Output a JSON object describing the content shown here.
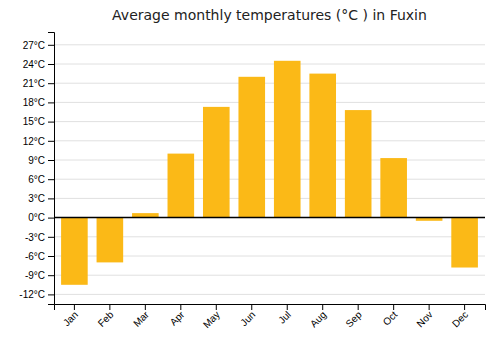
{
  "chart_data": {
    "type": "bar",
    "title": "Average monthly temperatures (°C ) in Fuxin",
    "categories": [
      "Jan",
      "Feb",
      "Mar",
      "Apr",
      "May",
      "Jun",
      "Jul",
      "Aug",
      "Sep",
      "Oct",
      "Nov",
      "Dec"
    ],
    "values": [
      -10.5,
      -7.0,
      0.7,
      10.0,
      17.3,
      22.0,
      24.5,
      22.5,
      16.8,
      9.3,
      -0.5,
      -7.8
    ],
    "color": "#FBB917",
    "ylim": [
      -13.5,
      29
    ],
    "yticks": [
      {
        "value": -12,
        "label": "-12°C"
      },
      {
        "value": -9,
        "label": "-9°C"
      },
      {
        "value": -6,
        "label": "-6°C"
      },
      {
        "value": -3,
        "label": "-3°C"
      },
      {
        "value": 0,
        "label": "0°C"
      },
      {
        "value": 3,
        "label": "3°C"
      },
      {
        "value": 6,
        "label": "6°C"
      },
      {
        "value": 9,
        "label": "9°C"
      },
      {
        "value": 12,
        "label": "12°C"
      },
      {
        "value": 15,
        "label": "15°C"
      },
      {
        "value": 18,
        "label": "18°C"
      },
      {
        "value": 21,
        "label": "21°C"
      },
      {
        "value": 24,
        "label": "24°C"
      },
      {
        "value": 27,
        "label": "27°C"
      }
    ],
    "grid": true
  }
}
